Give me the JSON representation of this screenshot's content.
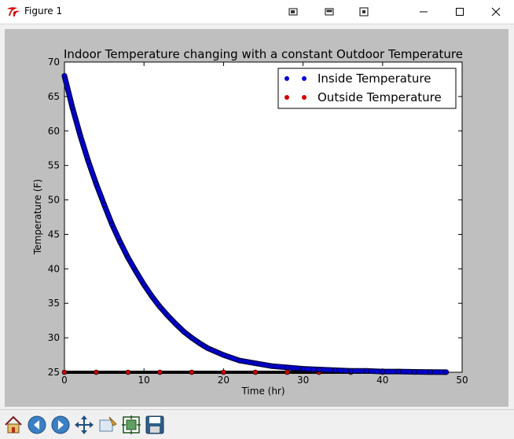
{
  "window": {
    "title": "Figure 1"
  },
  "toolbar": {
    "buttons": [
      {
        "name": "home-button",
        "icon": "home-icon"
      },
      {
        "name": "back-button",
        "icon": "arrow-left-icon"
      },
      {
        "name": "forward-button",
        "icon": "arrow-right-icon"
      },
      {
        "name": "pan-button",
        "icon": "move-icon"
      },
      {
        "name": "zoom-button",
        "icon": "zoom-rect-icon"
      },
      {
        "name": "subplots-button",
        "icon": "configure-subplots-icon"
      },
      {
        "name": "save-button",
        "icon": "floppy-disk-icon"
      }
    ]
  },
  "chart_data": {
    "type": "scatter",
    "title": "Indoor Temperature changing with a constant Outdoor Temperature",
    "xlabel": "Time (hr)",
    "ylabel": "Temperature (F)",
    "xlim": [
      0,
      50
    ],
    "ylim": [
      25,
      70
    ],
    "xticks": [
      "0",
      "10",
      "20",
      "30",
      "40",
      "50"
    ],
    "yticks": [
      "25",
      "30",
      "35",
      "40",
      "45",
      "50",
      "55",
      "60",
      "65",
      "70"
    ],
    "grid": false,
    "legend_position": "top-right",
    "series": [
      {
        "name": "Inside Temperature",
        "color": "#0000cc",
        "x": [
          0,
          1,
          2,
          3,
          4,
          5,
          6,
          7,
          8,
          9,
          10,
          11,
          12,
          13,
          14,
          15,
          16,
          17,
          18,
          19,
          20,
          22,
          24,
          26,
          28,
          30,
          32,
          34,
          36,
          38,
          40,
          42,
          44,
          46,
          48
        ],
        "y": [
          68.0,
          63.4,
          59.3,
          55.6,
          52.3,
          49.3,
          46.4,
          43.9,
          41.6,
          39.6,
          37.7,
          36.0,
          34.5,
          33.2,
          32.0,
          30.9,
          30.0,
          29.2,
          28.5,
          28.0,
          27.5,
          26.7,
          26.3,
          25.9,
          25.7,
          25.5,
          25.4,
          25.3,
          25.2,
          25.2,
          25.1,
          25.1,
          25.05,
          25.03,
          25.02
        ]
      },
      {
        "name": "Outside Temperature",
        "color": "#cc0000",
        "x": [
          0,
          4,
          8,
          12,
          16,
          20,
          24,
          28,
          32,
          36,
          40,
          44,
          48
        ],
        "y": [
          25,
          25,
          25,
          25,
          25,
          25,
          25,
          25,
          25,
          25,
          25,
          25,
          25
        ]
      }
    ]
  }
}
